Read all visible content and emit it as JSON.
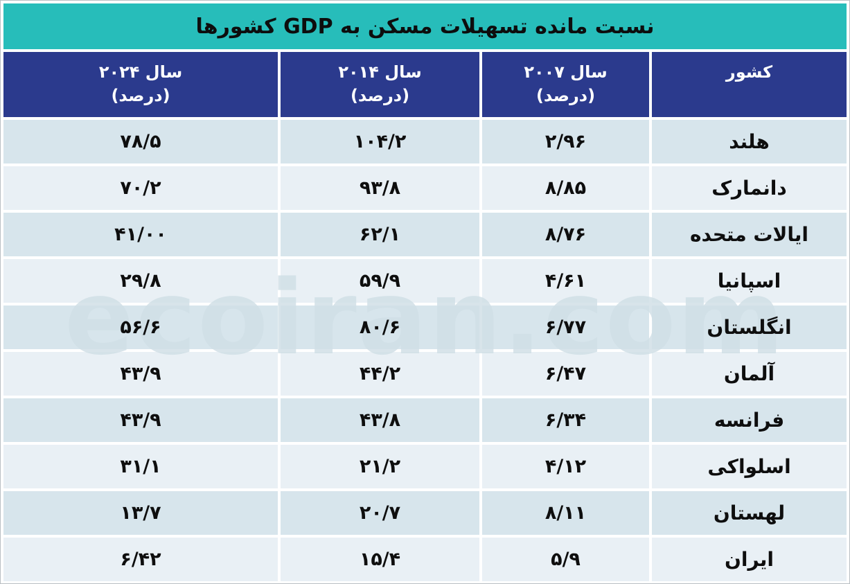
{
  "title": "نسبت مانده تسهیلات مسکن به GDP کشورها",
  "watermark": "ecoiran.com",
  "colors": {
    "title_bg": "#27bdba",
    "header_bg": "#2b3a8d",
    "row_odd": "#d7e5ec",
    "row_even": "#e9f0f5",
    "header_text": "#ffffff",
    "body_text": "#0e0e0e"
  },
  "table": {
    "headers": {
      "country": "کشور",
      "y2007": "سال ۲۰۰۷",
      "y2014": "سال ۲۰۱۴",
      "y2024": "سال ۲۰۲۴",
      "percent": "(درصد)"
    },
    "rows": [
      {
        "country": "هلند",
        "y2007": "۲/۹۶",
        "y2014": "۱۰۴/۲",
        "y2024": "۷۸/۵"
      },
      {
        "country": "دانمارک",
        "y2007": "۸/۸۵",
        "y2014": "۹۳/۸",
        "y2024": "۷۰/۲"
      },
      {
        "country": "ایالات متحده",
        "y2007": "۸/۷۶",
        "y2014": "۶۲/۱",
        "y2024": "۴۱/۰۰"
      },
      {
        "country": "اسپانیا",
        "y2007": "۴/۶۱",
        "y2014": "۵۹/۹",
        "y2024": "۲۹/۸"
      },
      {
        "country": "انگلستان",
        "y2007": "۶/۷۷",
        "y2014": "۸۰/۶",
        "y2024": "۵۶/۶"
      },
      {
        "country": "آلمان",
        "y2007": "۶/۴۷",
        "y2014": "۴۴/۲",
        "y2024": "۴۳/۹"
      },
      {
        "country": "فرانسه",
        "y2007": "۶/۳۴",
        "y2014": "۴۳/۸",
        "y2024": "۴۳/۹"
      },
      {
        "country": "اسلواکی",
        "y2007": "۴/۱۲",
        "y2014": "۲۱/۲",
        "y2024": "۳۱/۱"
      },
      {
        "country": "لهستان",
        "y2007": "۸/۱۱",
        "y2014": "۲۰/۷",
        "y2024": "۱۳/۷"
      },
      {
        "country": "ایران",
        "y2007": "۵/۹",
        "y2014": "۱۵/۴",
        "y2024": "۶/۴۲"
      }
    ]
  },
  "chart_data": {
    "type": "table",
    "title": "نسبت مانده تسهیلات مسکن به GDP کشورها",
    "columns": [
      "کشور",
      "سال ۲۰۰۷ (درصد)",
      "سال ۲۰۱۴ (درصد)",
      "سال ۲۰۲۴ (درصد)"
    ],
    "categories": [
      "هلند",
      "دانمارک",
      "ایالات متحده",
      "اسپانیا",
      "انگلستان",
      "آلمان",
      "فرانسه",
      "اسلواکی",
      "لهستان",
      "ایران"
    ],
    "series": [
      {
        "name": "سال ۲۰۰۷ (درصد)",
        "values": [
          2.96,
          8.85,
          8.76,
          4.61,
          6.77,
          6.47,
          6.34,
          4.12,
          8.11,
          5.9
        ]
      },
      {
        "name": "سال ۲۰۱۴ (درصد)",
        "values": [
          104.2,
          93.8,
          62.1,
          59.9,
          80.6,
          44.2,
          43.8,
          21.2,
          20.7,
          15.4
        ]
      },
      {
        "name": "سال ۲۰۲۴ (درصد)",
        "values": [
          78.5,
          70.2,
          41.0,
          29.8,
          56.6,
          43.9,
          43.9,
          31.1,
          13.7,
          6.42
        ]
      }
    ]
  }
}
